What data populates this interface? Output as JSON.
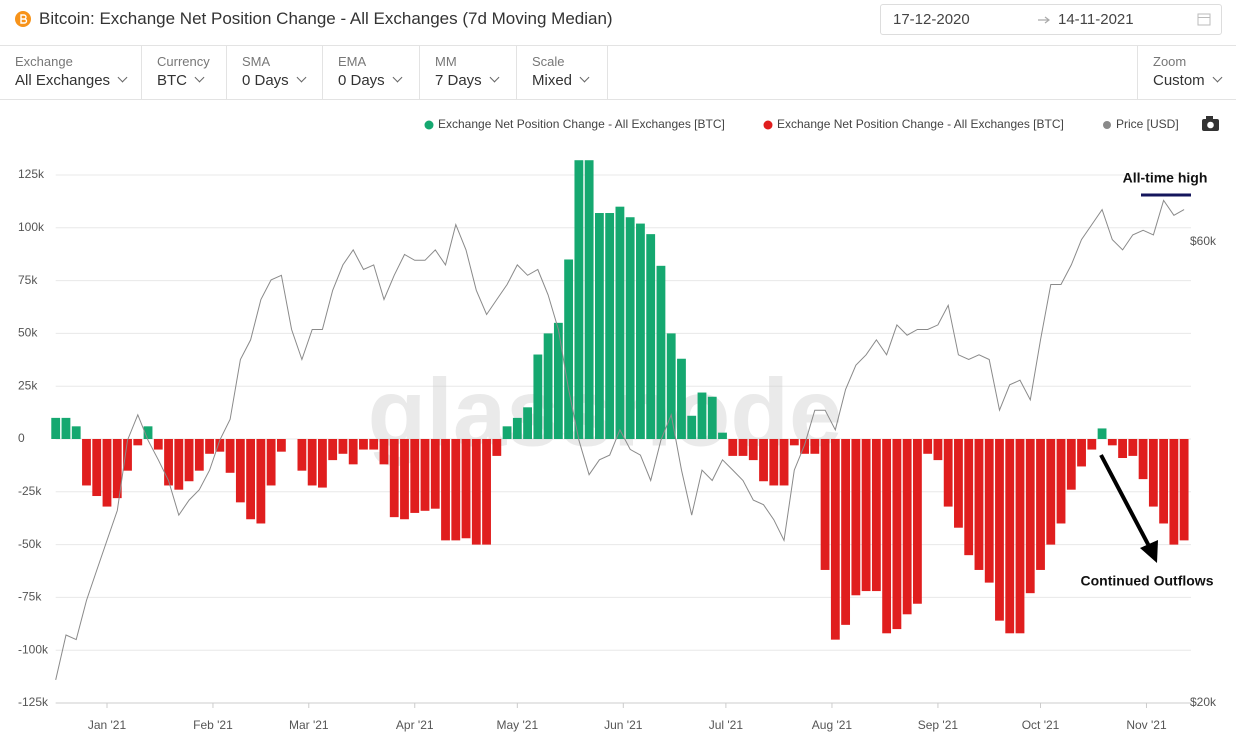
{
  "header": {
    "title": "Bitcoin: Exchange Net Position Change - All Exchanges (7d Moving Median)",
    "date_from": "17-12-2020",
    "date_to": "14-11-2021"
  },
  "filters": [
    {
      "label": "Exchange",
      "value": "All Exchanges"
    },
    {
      "label": "Currency",
      "value": "BTC"
    },
    {
      "label": "SMA",
      "value": "0 Days"
    },
    {
      "label": "EMA",
      "value": "0 Days"
    },
    {
      "label": "MM",
      "value": "7 Days"
    },
    {
      "label": "Scale",
      "value": "Mixed"
    }
  ],
  "zoom": {
    "label": "Zoom",
    "value": "Custom"
  },
  "chart_data": {
    "type": "bar",
    "watermark": "glassnode",
    "annotations": [
      "All-time high",
      "Continued Outflows"
    ],
    "xlim": [
      0,
      110.67
    ],
    "xticks": [
      {
        "value": 5,
        "label": "Jan '21"
      },
      {
        "value": 15.33,
        "label": "Feb '21"
      },
      {
        "value": 24.67,
        "label": "Mar '21"
      },
      {
        "value": 35,
        "label": "Apr '21"
      },
      {
        "value": 45,
        "label": "May '21"
      },
      {
        "value": 55.33,
        "label": "Jun '21"
      },
      {
        "value": 65.33,
        "label": "Jul '21"
      },
      {
        "value": 75.67,
        "label": "Aug '21"
      },
      {
        "value": 86,
        "label": "Sep '21"
      },
      {
        "value": 96,
        "label": "Oct '21"
      },
      {
        "value": 106.33,
        "label": "Nov '21"
      }
    ],
    "ylim": [
      -125000,
      125000
    ],
    "yticks": [
      {
        "value": 125000,
        "label": "125k"
      },
      {
        "value": 100000,
        "label": "100k"
      },
      {
        "value": 75000,
        "label": "75k"
      },
      {
        "value": 50000,
        "label": "50k"
      },
      {
        "value": 25000,
        "label": "25k"
      },
      0,
      {
        "value": -25000,
        "label": "-25k"
      },
      {
        "value": -50000,
        "label": "-50k"
      },
      {
        "value": -75000,
        "label": "-75k"
      },
      {
        "value": -100000,
        "label": "-100k"
      },
      {
        "value": -125000,
        "label": "-125k"
      }
    ],
    "y2lim": [
      20000,
      65800
    ],
    "y2ticks": [
      {
        "value": 60000,
        "label": "$60k"
      },
      {
        "value": 20000,
        "label": "$20k"
      }
    ],
    "grid": true,
    "series": [
      {
        "name": "Exchange Net Position Change - All Exchanges [BTC]",
        "color": "#15a870",
        "values": [
          10000,
          10000,
          6000,
          null,
          null,
          null,
          null,
          null,
          null,
          6000,
          null,
          null,
          null,
          null,
          null,
          null,
          null,
          null,
          null,
          null,
          null,
          null,
          null,
          null,
          null,
          null,
          null,
          null,
          null,
          null,
          null,
          null,
          null,
          null,
          null,
          null,
          null,
          null,
          null,
          null,
          null,
          null,
          null,
          null,
          6000,
          10000,
          15000,
          40000,
          50000,
          55000,
          85000,
          132000,
          132000,
          107000,
          107000,
          110000,
          105000,
          102000,
          97000,
          82000,
          50000,
          38000,
          11000,
          22000,
          20000,
          3000,
          null,
          null,
          null,
          null,
          null,
          null,
          null,
          null,
          null,
          null,
          null,
          null,
          null,
          null,
          null,
          null,
          null,
          null,
          null,
          null,
          null,
          null,
          null,
          null,
          null,
          null,
          null,
          null,
          null,
          null,
          null,
          null,
          null,
          null,
          null,
          null,
          5000,
          null,
          null,
          null,
          null,
          null,
          null,
          null,
          null
        ]
      },
      {
        "name": "Exchange Net Position Change - All Exchanges [BTC]",
        "color": "#e01e1e",
        "values": [
          null,
          null,
          null,
          -22000,
          -27000,
          -32000,
          -28000,
          -15000,
          -3000,
          null,
          -5000,
          -22000,
          -24000,
          -20000,
          -15000,
          -7000,
          -6000,
          -16000,
          -30000,
          -38000,
          -40000,
          -22000,
          -6000,
          0,
          -15000,
          -22000,
          -23000,
          -10000,
          -7000,
          -12000,
          -5000,
          -5000,
          -12000,
          -37000,
          -38000,
          -35000,
          -34000,
          -33000,
          -48000,
          -48000,
          -47000,
          -50000,
          -50000,
          -8000,
          null,
          null,
          null,
          null,
          null,
          null,
          null,
          null,
          null,
          null,
          null,
          null,
          null,
          null,
          null,
          null,
          null,
          null,
          null,
          null,
          null,
          null,
          -8000,
          -8000,
          -10000,
          -20000,
          -22000,
          -22000,
          -3000,
          -7000,
          -7000,
          -62000,
          -95000,
          -88000,
          -74000,
          -72000,
          -72000,
          -92000,
          -90000,
          -83000,
          -78000,
          -7000,
          -10000,
          -32000,
          -42000,
          -55000,
          -62000,
          -68000,
          -86000,
          -92000,
          -92000,
          -73000,
          -62000,
          -50000,
          -40000,
          -24000,
          -13000,
          -5000,
          null,
          -3000,
          -9000,
          -8000,
          -19000,
          -32000,
          -40000,
          -50000,
          -48000
        ]
      },
      {
        "name": "Price [USD]",
        "color": "#8a8a8a",
        "type": "line",
        "axis": "y2",
        "values": [
          22000,
          25900,
          25500,
          28900,
          31500,
          34100,
          36700,
          42800,
          45000,
          42800,
          41100,
          39300,
          36300,
          37600,
          38500,
          40200,
          42800,
          44600,
          49800,
          51500,
          55000,
          56700,
          57100,
          52400,
          49800,
          52400,
          52400,
          55800,
          58000,
          59300,
          57600,
          58000,
          55000,
          57100,
          58900,
          58400,
          58400,
          59300,
          58000,
          61500,
          59300,
          55800,
          53700,
          55000,
          56300,
          58000,
          57100,
          57600,
          55400,
          52400,
          47200,
          42800,
          39800,
          41100,
          41500,
          43700,
          42000,
          41500,
          39300,
          42800,
          45000,
          40200,
          36300,
          40200,
          39300,
          41100,
          40200,
          39300,
          37600,
          37200,
          35900,
          34100,
          40200,
          42400,
          45400,
          45400,
          43700,
          47200,
          49300,
          50200,
          51500,
          50200,
          52800,
          51900,
          52400,
          52400,
          52800,
          54500,
          50200,
          49800,
          50200,
          49800,
          45400,
          47600,
          48000,
          46300,
          51500,
          56300,
          56300,
          58000,
          60200,
          61500,
          62800,
          60200,
          59300,
          60600,
          61000,
          60600,
          63600,
          62300,
          62800
        ]
      }
    ]
  }
}
